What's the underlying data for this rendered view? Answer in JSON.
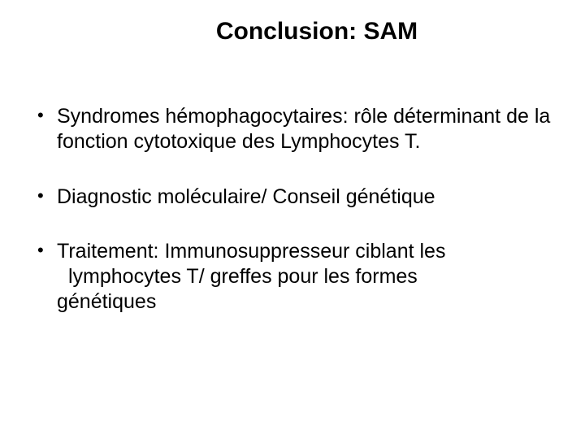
{
  "slide": {
    "title": "Conclusion: SAM",
    "title_fontsize": 30,
    "title_color": "#000000",
    "background_color": "#ffffff",
    "font_family": "Comic Sans MS",
    "body_fontsize": 25,
    "body_color": "#000000",
    "bullets": [
      {
        "text": "Syndromes hémophagocytaires: rôle déterminant de la fonction cytotoxique des Lymphocytes T."
      },
      {
        "text": "Diagnostic moléculaire/ Conseil génétique"
      },
      {
        "line1": "Traitement: Immunosuppresseur ciblant les",
        "line2": "lymphocytes T/ greffes pour les formes",
        "line3": "génétiques"
      }
    ]
  }
}
